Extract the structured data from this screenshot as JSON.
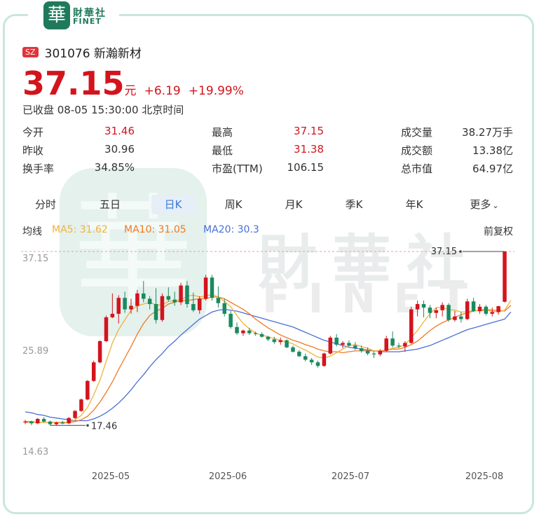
{
  "brand": {
    "logo_char": "華",
    "name_cn": "財華社",
    "name_en": "FINET"
  },
  "stock": {
    "market": "SZ",
    "code_name": "301076 新瀚新材",
    "price": "37.15",
    "unit": "元",
    "change": "+6.19",
    "change_pct": "+19.99%",
    "status": "已收盘 08-05 15:30:00 北京时间"
  },
  "stats": [
    [
      {
        "label": "今开",
        "value": "31.46"
      },
      {
        "label": "最高",
        "value": "37.15"
      },
      {
        "label": "成交量",
        "value": "38.27万手"
      }
    ],
    [
      {
        "label": "昨收",
        "value": "30.96"
      },
      {
        "label": "最低",
        "value": "31.38"
      },
      {
        "label": "成交额",
        "value": "13.38亿"
      }
    ],
    [
      {
        "label": "换手率",
        "value": "34.85%"
      },
      {
        "label": "市盈(TTM)",
        "value": "106.15"
      },
      {
        "label": "总市值",
        "value": "64.97亿"
      }
    ]
  ],
  "tabs": [
    "分时",
    "五日",
    "日K",
    "周K",
    "月K",
    "季K",
    "年K",
    "更多"
  ],
  "active_tab": "日K",
  "ma": {
    "title": "均线",
    "ma5": "MA5: 31.62",
    "ma10": "MA10: 31.05",
    "ma20": "MA20: 30.3",
    "adjust": "前复权"
  },
  "watermark": {
    "cn": "財華社",
    "en": "FINET"
  },
  "colors": {
    "up": "#d3141d",
    "down": "#1a8a5f",
    "ma5": "#f0b23c",
    "ma10": "#f07a24",
    "ma20": "#4a6fd6"
  },
  "chart_data": {
    "type": "candlestick",
    "y_ticks": [
      "37.15",
      "25.89",
      "14.63"
    ],
    "ylim": [
      14.63,
      37.15
    ],
    "x_labels": [
      "2025-05",
      "2025-06",
      "2025-07",
      "2025-08"
    ],
    "max_label": "37.15",
    "min_label": "17.46",
    "candles": [
      [
        17.8,
        18.1,
        17.6,
        17.9
      ],
      [
        17.9,
        18.0,
        17.5,
        17.7
      ],
      [
        17.7,
        18.3,
        17.6,
        18.2
      ],
      [
        18.2,
        18.4,
        17.8,
        17.9
      ],
      [
        17.9,
        18.0,
        17.46,
        17.6
      ],
      [
        17.6,
        17.9,
        17.5,
        17.8
      ],
      [
        17.8,
        18.0,
        17.6,
        17.7
      ],
      [
        17.7,
        18.4,
        17.6,
        18.3
      ],
      [
        18.3,
        19.2,
        18.2,
        19.1
      ],
      [
        19.1,
        20.5,
        19.0,
        20.4
      ],
      [
        20.4,
        22.6,
        20.3,
        22.5
      ],
      [
        22.5,
        24.8,
        22.4,
        24.6
      ],
      [
        24.6,
        27.1,
        24.5,
        27.0
      ],
      [
        27.0,
        29.9,
        26.9,
        29.7
      ],
      [
        29.7,
        32.4,
        29.6,
        30.1
      ],
      [
        30.1,
        32.2,
        29.0,
        31.9
      ],
      [
        31.9,
        32.6,
        30.2,
        30.6
      ],
      [
        30.6,
        31.8,
        30.1,
        31.0
      ],
      [
        31.0,
        32.8,
        30.3,
        32.4
      ],
      [
        32.4,
        33.8,
        31.4,
        31.8
      ],
      [
        31.8,
        32.1,
        30.6,
        31.2
      ],
      [
        31.2,
        33.0,
        29.0,
        29.4
      ],
      [
        29.4,
        32.4,
        29.2,
        32.1
      ],
      [
        32.1,
        33.1,
        31.5,
        31.7
      ],
      [
        31.7,
        32.6,
        31.0,
        31.4
      ],
      [
        31.4,
        33.6,
        31.1,
        33.3
      ],
      [
        33.3,
        33.8,
        30.8,
        31.2
      ],
      [
        31.2,
        32.5,
        30.3,
        30.5
      ],
      [
        30.5,
        32.1,
        30.1,
        31.8
      ],
      [
        31.8,
        34.5,
        31.6,
        34.2
      ],
      [
        34.2,
        34.5,
        31.6,
        31.9
      ],
      [
        31.9,
        33.2,
        30.8,
        31.3
      ],
      [
        31.3,
        31.8,
        29.8,
        30.1
      ],
      [
        30.1,
        30.4,
        28.4,
        28.6
      ],
      [
        28.6,
        29.1,
        27.7,
        27.9
      ],
      [
        27.9,
        28.3,
        27.6,
        28.2
      ],
      [
        28.2,
        28.5,
        27.7,
        27.9
      ],
      [
        27.9,
        28.1,
        27.6,
        27.8
      ],
      [
        27.8,
        28.0,
        27.4,
        27.5
      ],
      [
        27.5,
        27.6,
        27.0,
        27.2
      ],
      [
        27.2,
        27.5,
        26.7,
        26.9
      ],
      [
        26.9,
        27.4,
        26.6,
        27.1
      ],
      [
        27.1,
        27.2,
        26.2,
        26.3
      ],
      [
        26.3,
        26.5,
        25.7,
        25.8
      ],
      [
        25.8,
        26.0,
        25.2,
        25.3
      ],
      [
        25.3,
        25.6,
        24.7,
        24.9
      ],
      [
        24.9,
        25.1,
        24.3,
        24.6
      ],
      [
        24.6,
        24.8,
        24.0,
        24.2
      ],
      [
        24.2,
        25.7,
        24.1,
        25.6
      ],
      [
        25.6,
        27.6,
        25.5,
        27.4
      ],
      [
        27.4,
        27.8,
        26.4,
        26.6
      ],
      [
        26.6,
        27.0,
        26.2,
        26.8
      ],
      [
        26.8,
        27.1,
        26.4,
        26.5
      ],
      [
        26.5,
        26.9,
        26.0,
        26.2
      ],
      [
        26.2,
        26.5,
        25.7,
        25.9
      ],
      [
        25.9,
        26.3,
        25.4,
        25.6
      ],
      [
        25.6,
        25.9,
        25.1,
        25.5
      ],
      [
        25.5,
        26.1,
        25.3,
        25.9
      ],
      [
        25.9,
        27.6,
        25.8,
        27.3
      ],
      [
        27.3,
        28.1,
        26.3,
        26.5
      ],
      [
        26.5,
        26.8,
        26.2,
        26.4
      ],
      [
        26.4,
        27.0,
        25.8,
        26.8
      ],
      [
        26.8,
        30.9,
        26.7,
        30.6
      ],
      [
        30.6,
        31.6,
        29.8,
        31.2
      ],
      [
        31.2,
        31.6,
        29.7,
        30.8
      ],
      [
        30.8,
        31.1,
        29.6,
        30.2
      ],
      [
        30.2,
        30.8,
        29.6,
        30.5
      ],
      [
        30.5,
        31.4,
        29.8,
        31.1
      ],
      [
        31.1,
        31.3,
        29.2,
        29.4
      ],
      [
        29.4,
        30.4,
        29.2,
        29.8
      ],
      [
        29.8,
        30.3,
        29.1,
        29.5
      ],
      [
        29.5,
        31.8,
        29.4,
        31.5
      ],
      [
        31.5,
        31.9,
        30.3,
        30.4
      ],
      [
        30.4,
        31.2,
        30.1,
        30.9
      ],
      [
        30.9,
        31.1,
        29.9,
        30.1
      ],
      [
        30.1,
        30.8,
        29.8,
        30.3
      ],
      [
        30.3,
        31.0,
        30.0,
        30.96
      ],
      [
        31.46,
        37.15,
        31.38,
        37.15
      ]
    ],
    "ma5": [
      17.8,
      17.8,
      17.8,
      17.8,
      17.8,
      17.8,
      17.7,
      17.8,
      18.1,
      18.6,
      19.5,
      20.9,
      22.6,
      24.7,
      26.8,
      28.3,
      29.4,
      30.5,
      31.0,
      31.2,
      31.4,
      31.1,
      31.1,
      31.5,
      31.6,
      31.7,
      32.1,
      32.2,
      32.0,
      32.1,
      32.3,
      32.0,
      31.5,
      30.9,
      29.9,
      29.0,
      28.4,
      27.9,
      27.7,
      27.5,
      27.3,
      27.1,
      26.9,
      26.7,
      26.3,
      26.0,
      25.6,
      25.2,
      25.1,
      25.3,
      25.7,
      26.1,
      26.5,
      26.6,
      26.4,
      26.2,
      25.9,
      25.8,
      26.0,
      26.2,
      26.3,
      26.6,
      27.4,
      28.2,
      29.2,
      30.1,
      30.8,
      30.8,
      30.6,
      30.5,
      30.3,
      30.3,
      30.5,
      30.4,
      30.5,
      30.4,
      30.3,
      30.5,
      31.62
    ],
    "ma10": [
      17.9,
      17.9,
      17.8,
      17.8,
      17.8,
      17.8,
      17.8,
      17.8,
      17.9,
      18.1,
      18.5,
      19.2,
      20.1,
      21.2,
      22.4,
      23.8,
      25.1,
      26.4,
      27.8,
      29.0,
      29.9,
      30.4,
      30.7,
      31.2,
      31.4,
      31.6,
      31.6,
      31.7,
      31.8,
      31.8,
      32.0,
      32.0,
      31.8,
      31.4,
      31.0,
      30.6,
      30.1,
      29.5,
      29.0,
      28.5,
      28.1,
      27.7,
      27.4,
      27.1,
      26.9,
      26.6,
      26.4,
      26.1,
      25.9,
      25.8,
      25.8,
      25.7,
      25.8,
      25.9,
      25.9,
      25.9,
      25.9,
      25.9,
      26.0,
      26.1,
      26.1,
      26.3,
      26.6,
      27.0,
      27.6,
      28.2,
      28.7,
      29.1,
      29.4,
      29.7,
      30.0,
      30.2,
      30.4,
      30.5,
      30.6,
      30.5,
      30.5,
      30.4,
      31.05
    ],
    "ma20": [
      19.0,
      18.9,
      18.7,
      18.6,
      18.4,
      18.3,
      18.2,
      18.1,
      18.0,
      18.0,
      18.0,
      18.2,
      18.5,
      18.9,
      19.4,
      20.0,
      20.7,
      21.5,
      22.4,
      23.2,
      24.1,
      24.9,
      25.6,
      26.4,
      27.0,
      27.7,
      28.3,
      28.9,
      29.5,
      29.9,
      30.3,
      30.5,
      30.6,
      30.5,
      30.4,
      30.2,
      30.0,
      29.8,
      29.6,
      29.4,
      29.2,
      29.0,
      28.8,
      28.6,
      28.3,
      28.0,
      27.7,
      27.4,
      27.1,
      26.9,
      26.7,
      26.5,
      26.3,
      26.2,
      26.1,
      26.0,
      25.9,
      25.8,
      25.8,
      25.8,
      25.8,
      25.9,
      26.0,
      26.1,
      26.3,
      26.5,
      26.8,
      27.1,
      27.4,
      27.7,
      28.0,
      28.3,
      28.5,
      28.7,
      28.9,
      29.1,
      29.3,
      29.5,
      30.3
    ]
  }
}
